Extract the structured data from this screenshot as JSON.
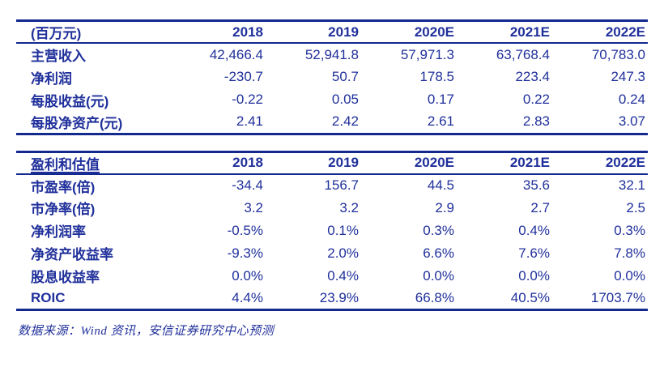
{
  "colors": {
    "text_navy": "#20309b",
    "line_navy": "#13298e",
    "background": "#ffffff"
  },
  "income_table": {
    "unit_label": "(百万元)",
    "columns": [
      "2018",
      "2019",
      "2020E",
      "2021E",
      "2022E"
    ],
    "rows": [
      {
        "label": "主营收入",
        "values": [
          "42,466.4",
          "52,941.8",
          "57,971.3",
          "63,768.4",
          "70,783.0"
        ]
      },
      {
        "label": "净利润",
        "values": [
          "-230.7",
          "50.7",
          "178.5",
          "223.4",
          "247.3"
        ]
      },
      {
        "label": "每股收益(元)",
        "values": [
          "-0.22",
          "0.05",
          "0.17",
          "0.22",
          "0.24"
        ]
      },
      {
        "label": "每股净资产(元)",
        "values": [
          "2.41",
          "2.42",
          "2.61",
          "2.83",
          "3.07"
        ]
      }
    ]
  },
  "valuation_table": {
    "title": "盈利和估值",
    "columns": [
      "2018",
      "2019",
      "2020E",
      "2021E",
      "2022E"
    ],
    "rows": [
      {
        "label": "市盈率(倍)",
        "values": [
          "-34.4",
          "156.7",
          "44.5",
          "35.6",
          "32.1"
        ]
      },
      {
        "label": "市净率(倍)",
        "values": [
          "3.2",
          "3.2",
          "2.9",
          "2.7",
          "2.5"
        ]
      },
      {
        "label": "净利润率",
        "values": [
          "-0.5%",
          "0.1%",
          "0.3%",
          "0.4%",
          "0.3%"
        ]
      },
      {
        "label": "净资产收益率",
        "values": [
          "-9.3%",
          "2.0%",
          "6.6%",
          "7.6%",
          "7.8%"
        ]
      },
      {
        "label": "股息收益率",
        "values": [
          "0.0%",
          "0.4%",
          "0.0%",
          "0.0%",
          "0.0%"
        ]
      },
      {
        "label": "ROIC",
        "values": [
          "4.4%",
          "23.9%",
          "66.8%",
          "40.5%",
          "1703.7%"
        ]
      }
    ]
  },
  "footer": {
    "source_note": "数据来源：Wind 资讯，安信证券研究中心预测"
  }
}
